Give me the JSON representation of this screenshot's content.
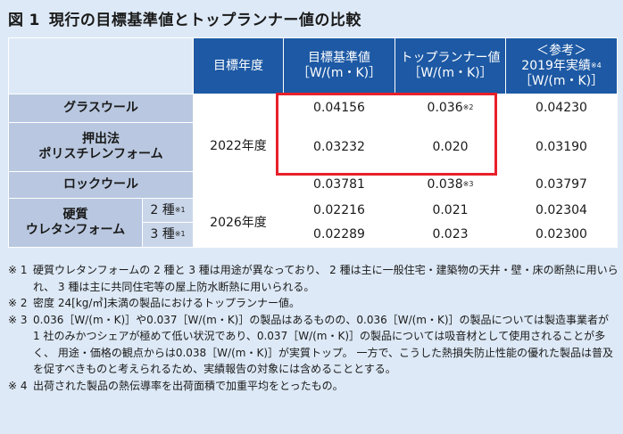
{
  "title": {
    "label": "図",
    "num": "1",
    "text": "現行の目標基準値とトップランナー値の比較"
  },
  "header": {
    "year": "目標年度",
    "target_1": "目標基準値",
    "target_2": "［W/(m・K)］",
    "top_1": "トップランナー値",
    "top_2": "［W/(m・K)］",
    "ref_1": "＜参考＞",
    "ref_2": "2019年実績",
    "ref_2_sup": "※4",
    "ref_3": "［W/(m・K)］"
  },
  "rows": {
    "glass": {
      "name": "グラスウール",
      "target": "0.04156",
      "top": "0.036",
      "top_sup": "※2",
      "ref": "0.04230"
    },
    "poly": {
      "name_1": "押出法",
      "name_2": "ポリスチレンフォーム",
      "target": "0.03232",
      "top": "0.020",
      "ref": "0.03190"
    },
    "rock": {
      "name": "ロックウール",
      "target": "0.03781",
      "top": "0.038",
      "top_sup": "※3",
      "ref": "0.03797"
    },
    "urethane": {
      "name_1": "硬質",
      "name_2": "ウレタンフォーム",
      "type2": "2 種",
      "type2_sup": "※1",
      "type3": "3 種",
      "type3_sup": "※1",
      "type2_target": "0.02216",
      "type2_top": "0.021",
      "type2_ref": "0.02304",
      "type3_target": "0.02289",
      "type3_top": "0.023",
      "type3_ref": "0.02300"
    }
  },
  "years": {
    "y2022": "2022年度",
    "y2026": "2026年度"
  },
  "notes": [
    {
      "mark": "※ 1",
      "text": "硬質ウレタンフォームの 2 種と 3 種は用途が異なっており、 2 種は主に一般住宅・建築物の天井・壁・床の断熱に用いられ、 3 種は主に共同住宅等の屋上防水断熱に用いられる。"
    },
    {
      "mark": "※ 2",
      "text": "密度 24[kg/㎥]未満の製品におけるトップランナー値。"
    },
    {
      "mark": "※ 3",
      "text": "0.036［W/(m・K)］や0.037［W/(m・K)］の製品はあるものの、0.036［W/(m・K)］の製品については製造事業者が 1 社のみかつシェアが極めて低い状況であり、0.037［W/(m・K)］の製品については吸音材として使用されることが多く、 用途・価格の観点からは0.038［W/(m・K)］が実質トップ。 一方で、こうした熱損失防止性能の優れた製品は普及を促すべきものと考えられるため、実績報告の対象には含めることとする。"
    },
    {
      "mark": "※ 4",
      "text": "出荷された製品の熱伝導率を出荷面積で加重平均をとったもの。"
    }
  ]
}
